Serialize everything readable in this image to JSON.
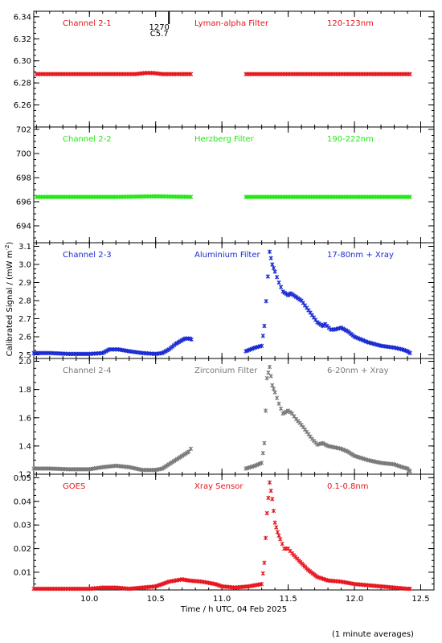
{
  "chart_data": {
    "type": "scatter",
    "x_range": [
      9.58,
      12.6
    ],
    "x_ticks": [
      "10.0",
      "10.5",
      "11.0",
      "11.5",
      "12.0",
      "12.5"
    ],
    "x_tick_values": [
      10.0,
      10.5,
      11.0,
      11.5,
      12.0,
      12.5
    ],
    "xlabel": "Time / h UTC, 04 Feb 2025",
    "ylabel": "Calibrated Signal / (mW m",
    "ylabel_sup": "-2",
    "ylabel_close": ")",
    "footnote": "(1 minute averages)",
    "annotation": {
      "x": 10.6,
      "line1": "1270",
      "line2": "C5.7"
    },
    "panels": [
      {
        "channel": "Channel 2-1",
        "filter": "Lyman-alpha Filter",
        "band": "120-123nm",
        "color": "#e8141c",
        "ylim": [
          6.24,
          6.345
        ],
        "y_tick_values": [
          6.26,
          6.28,
          6.3,
          6.32,
          6.34
        ],
        "y_ticks": [
          "6.26",
          "6.28",
          "6.30",
          "6.32",
          "6.34"
        ],
        "points": [
          [
            9.6,
            6.288
          ],
          [
            9.8,
            6.288
          ],
          [
            10.0,
            6.288
          ],
          [
            10.2,
            6.288
          ],
          [
            10.35,
            6.288
          ],
          [
            10.42,
            6.289
          ],
          [
            10.48,
            6.289
          ],
          [
            10.55,
            6.288
          ],
          [
            10.7,
            6.288
          ],
          [
            10.78,
            6.288
          ],
          [
            11.18,
            6.288
          ],
          [
            11.4,
            6.288
          ],
          [
            11.7,
            6.288
          ],
          [
            12.0,
            6.288
          ],
          [
            12.2,
            6.288
          ],
          [
            12.42,
            6.288
          ]
        ],
        "gaps": [
          [
            10.79,
            11.17
          ]
        ]
      },
      {
        "channel": "Channel 2-2",
        "filter": "Herzberg Filter",
        "band": "190-222nm",
        "color": "#22e614",
        "ylim": [
          692.6,
          702.2
        ],
        "y_tick_values": [
          694,
          696,
          698,
          700,
          702
        ],
        "y_ticks": [
          "694",
          "696",
          "698",
          "700",
          "702"
        ],
        "points": [
          [
            9.6,
            696.4
          ],
          [
            9.9,
            696.4
          ],
          [
            10.2,
            696.4
          ],
          [
            10.5,
            696.45
          ],
          [
            10.78,
            696.4
          ],
          [
            11.18,
            696.4
          ],
          [
            11.5,
            696.4
          ],
          [
            11.8,
            696.4
          ],
          [
            12.1,
            696.4
          ],
          [
            12.42,
            696.4
          ]
        ],
        "gaps": [
          [
            10.79,
            11.17
          ]
        ]
      },
      {
        "channel": "Channel 2-3",
        "filter": "Aluminium Filter",
        "band": "17-80nm + Xray",
        "color": "#1a2ad4",
        "ylim": [
          2.48,
          3.12
        ],
        "y_tick_values": [
          2.5,
          2.6,
          2.7,
          2.8,
          2.9,
          3.0,
          3.1
        ],
        "y_ticks": [
          "2.5",
          "2.6",
          "2.7",
          "2.8",
          "2.9",
          "3.0",
          "3.1"
        ],
        "points": [
          [
            9.58,
            2.51
          ],
          [
            9.7,
            2.51
          ],
          [
            9.85,
            2.505
          ],
          [
            10.0,
            2.505
          ],
          [
            10.1,
            2.51
          ],
          [
            10.15,
            2.53
          ],
          [
            10.22,
            2.53
          ],
          [
            10.3,
            2.52
          ],
          [
            10.4,
            2.51
          ],
          [
            10.5,
            2.505
          ],
          [
            10.55,
            2.51
          ],
          [
            10.6,
            2.53
          ],
          [
            10.65,
            2.56
          ],
          [
            10.72,
            2.59
          ],
          [
            10.76,
            2.59
          ],
          [
            10.78,
            2.58
          ],
          [
            11.18,
            2.52
          ],
          [
            11.25,
            2.54
          ],
          [
            11.3,
            2.55
          ],
          [
            11.32,
            2.66
          ],
          [
            11.36,
            3.07
          ],
          [
            11.38,
            3.0
          ],
          [
            11.4,
            2.96
          ],
          [
            11.43,
            2.9
          ],
          [
            11.46,
            2.85
          ],
          [
            11.5,
            2.83
          ],
          [
            11.52,
            2.84
          ],
          [
            11.56,
            2.82
          ],
          [
            11.6,
            2.8
          ],
          [
            11.64,
            2.76
          ],
          [
            11.68,
            2.72
          ],
          [
            11.72,
            2.68
          ],
          [
            11.76,
            2.66
          ],
          [
            11.78,
            2.67
          ],
          [
            11.82,
            2.64
          ],
          [
            11.85,
            2.64
          ],
          [
            11.9,
            2.65
          ],
          [
            11.95,
            2.63
          ],
          [
            12.0,
            2.6
          ],
          [
            12.1,
            2.57
          ],
          [
            12.2,
            2.55
          ],
          [
            12.3,
            2.54
          ],
          [
            12.36,
            2.53
          ],
          [
            12.4,
            2.52
          ],
          [
            12.42,
            2.51
          ]
        ],
        "gaps": [
          [
            10.79,
            11.17
          ]
        ]
      },
      {
        "channel": "Channel 2-4",
        "filter": "Zirconium Filter",
        "band": "6-20nm + Xray",
        "color": "#787878",
        "ylim": [
          1.2,
          2.02
        ],
        "y_tick_values": [
          1.2,
          1.4,
          1.6,
          1.8,
          2.0
        ],
        "y_ticks": [
          "1.2",
          "1.4",
          "1.6",
          "1.8",
          "2.0"
        ],
        "points": [
          [
            9.58,
            1.24
          ],
          [
            9.7,
            1.24
          ],
          [
            9.85,
            1.235
          ],
          [
            10.0,
            1.235
          ],
          [
            10.1,
            1.25
          ],
          [
            10.2,
            1.26
          ],
          [
            10.3,
            1.25
          ],
          [
            10.4,
            1.23
          ],
          [
            10.5,
            1.23
          ],
          [
            10.55,
            1.24
          ],
          [
            10.6,
            1.27
          ],
          [
            10.65,
            1.3
          ],
          [
            10.7,
            1.33
          ],
          [
            10.75,
            1.36
          ],
          [
            10.78,
            1.4
          ],
          [
            11.18,
            1.24
          ],
          [
            11.25,
            1.26
          ],
          [
            11.3,
            1.28
          ],
          [
            11.32,
            1.42
          ],
          [
            11.34,
            1.88
          ],
          [
            11.36,
            1.96
          ],
          [
            11.38,
            1.83
          ],
          [
            11.4,
            1.78
          ],
          [
            11.43,
            1.7
          ],
          [
            11.46,
            1.63
          ],
          [
            11.5,
            1.65
          ],
          [
            11.53,
            1.63
          ],
          [
            11.56,
            1.59
          ],
          [
            11.6,
            1.55
          ],
          [
            11.64,
            1.5
          ],
          [
            11.68,
            1.45
          ],
          [
            11.72,
            1.41
          ],
          [
            11.76,
            1.42
          ],
          [
            11.8,
            1.4
          ],
          [
            11.85,
            1.39
          ],
          [
            11.9,
            1.38
          ],
          [
            11.95,
            1.36
          ],
          [
            12.0,
            1.33
          ],
          [
            12.1,
            1.3
          ],
          [
            12.2,
            1.28
          ],
          [
            12.3,
            1.27
          ],
          [
            12.36,
            1.25
          ],
          [
            12.4,
            1.24
          ],
          [
            12.42,
            1.22
          ]
        ],
        "gaps": [
          [
            10.79,
            11.17
          ]
        ]
      },
      {
        "channel": "GOES",
        "filter": "Xray Sensor",
        "band": "0.1-0.8nm",
        "color": "#e8141c",
        "ylim": [
          0.0025,
          0.0515
        ],
        "y_tick_values": [
          0.01,
          0.02,
          0.03,
          0.04,
          0.05
        ],
        "y_ticks": [
          "0.01",
          "0.02",
          "0.03",
          "0.04",
          "0.05"
        ],
        "points": [
          [
            9.58,
            0.003
          ],
          [
            9.8,
            0.003
          ],
          [
            10.0,
            0.003
          ],
          [
            10.1,
            0.0035
          ],
          [
            10.2,
            0.0035
          ],
          [
            10.3,
            0.003
          ],
          [
            10.4,
            0.0035
          ],
          [
            10.5,
            0.004
          ],
          [
            10.55,
            0.005
          ],
          [
            10.6,
            0.006
          ],
          [
            10.65,
            0.0065
          ],
          [
            10.7,
            0.007
          ],
          [
            10.75,
            0.0065
          ],
          [
            10.85,
            0.006
          ],
          [
            10.95,
            0.005
          ],
          [
            11.0,
            0.004
          ],
          [
            11.1,
            0.0035
          ],
          [
            11.2,
            0.004
          ],
          [
            11.3,
            0.005
          ],
          [
            11.32,
            0.014
          ],
          [
            11.34,
            0.035
          ],
          [
            11.36,
            0.048
          ],
          [
            11.38,
            0.041
          ],
          [
            11.4,
            0.031
          ],
          [
            11.42,
            0.027
          ],
          [
            11.44,
            0.024
          ],
          [
            11.47,
            0.02
          ],
          [
            11.5,
            0.02
          ],
          [
            11.53,
            0.018
          ],
          [
            11.58,
            0.015
          ],
          [
            11.65,
            0.011
          ],
          [
            11.72,
            0.008
          ],
          [
            11.8,
            0.0065
          ],
          [
            11.9,
            0.006
          ],
          [
            12.0,
            0.005
          ],
          [
            12.1,
            0.0045
          ],
          [
            12.2,
            0.004
          ],
          [
            12.3,
            0.0035
          ],
          [
            12.4,
            0.003
          ],
          [
            12.42,
            0.003
          ]
        ],
        "gaps": []
      }
    ]
  }
}
